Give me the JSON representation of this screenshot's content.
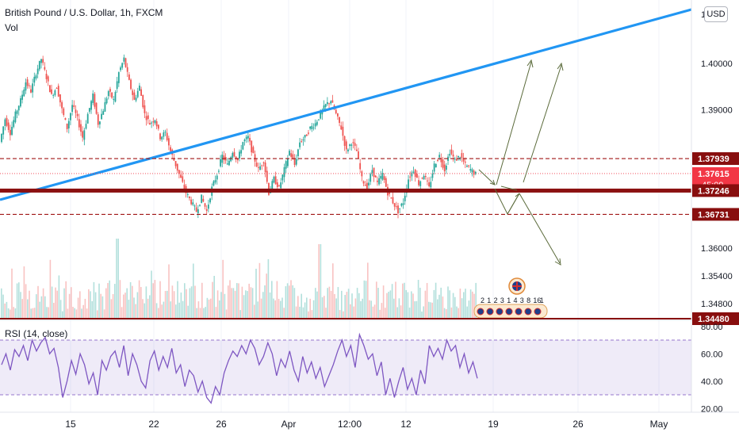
{
  "header": {
    "title": "British Pound / U.S. Dollar, 1h, FXCM",
    "volume_label": "Vol",
    "currency": "USD"
  },
  "rsi": {
    "label": "RSI (14, close)",
    "upper_band": 70,
    "lower_band": 30,
    "axis_ticks": [
      "80.00",
      "60.00",
      "40.00",
      "20.00"
    ],
    "axis_values": [
      80,
      60,
      40,
      20
    ],
    "series": [
      52,
      60,
      48,
      63,
      58,
      66,
      55,
      70,
      62,
      68,
      72,
      60,
      64,
      50,
      28,
      40,
      55,
      45,
      60,
      52,
      38,
      46,
      30,
      55,
      48,
      58,
      62,
      50,
      66,
      44,
      60,
      52,
      40,
      35,
      55,
      62,
      48,
      58,
      50,
      64,
      46,
      52,
      36,
      48,
      44,
      32,
      40,
      28,
      24,
      36,
      30,
      46,
      55,
      62,
      58,
      66,
      60,
      70,
      64,
      52,
      58,
      68,
      60,
      44,
      56,
      50,
      62,
      48,
      40,
      58,
      46,
      54,
      42,
      50,
      36,
      44,
      52,
      62,
      70,
      58,
      66,
      50,
      74,
      66,
      56,
      60,
      44,
      54,
      30,
      42,
      28,
      40,
      50,
      34,
      42,
      30,
      48,
      38,
      66,
      58,
      64,
      56,
      70,
      62,
      66,
      50,
      60,
      46,
      54,
      42
    ]
  },
  "price_axis": {
    "ticks": [
      "1.40000",
      "1.39000",
      "1.36000",
      "1.35400",
      "1.34800"
    ],
    "tick_values": [
      1.4,
      1.39,
      1.36,
      1.354,
      1.348
    ],
    "top_partial": "1.4"
  },
  "price_badges": [
    {
      "label": "1.37939",
      "value": 1.37939,
      "color": "#880e0e"
    },
    {
      "label": "1.37615",
      "value": 1.37615,
      "color": "#f23645",
      "countdown": "45:09"
    },
    {
      "label": "1.37246",
      "value": 1.37246,
      "color": "#880e0e"
    },
    {
      "label": "1.36731",
      "value": 1.36731,
      "color": "#880e0e"
    },
    {
      "label": "1.34480",
      "value": 1.3448,
      "color": "#880e0e"
    }
  ],
  "time_axis": {
    "labels": [
      "15",
      "22",
      "26",
      "Apr",
      "12:00",
      "12",
      "19",
      "26",
      "May"
    ],
    "positions": [
      89,
      194,
      279,
      364,
      441,
      512,
      622,
      729,
      831
    ]
  },
  "chart_data": {
    "type": "line",
    "title": "British Pound / U.S. Dollar, 1h, FXCM",
    "xlabel": "",
    "ylabel": "",
    "ylim": [
      1.3448,
      1.411
    ],
    "x_labels": [
      "15",
      "22",
      "26",
      "Apr",
      "12:00",
      "12",
      "19",
      "26",
      "May"
    ],
    "series": [
      {
        "name": "",
        "values": [
          1.383,
          1.388,
          1.385,
          1.389,
          1.392,
          1.396,
          1.394,
          1.398,
          1.401,
          1.397,
          1.393,
          1.395,
          1.39,
          1.386,
          1.391,
          1.388,
          1.384,
          1.389,
          1.393,
          1.387,
          1.39,
          1.394,
          1.392,
          1.398,
          1.401,
          1.396,
          1.392,
          1.395,
          1.389,
          1.387,
          1.388,
          1.384,
          1.385,
          1.381,
          1.378,
          1.375,
          1.372,
          1.37,
          1.368,
          1.371,
          1.368,
          1.373,
          1.376,
          1.38,
          1.378,
          1.381,
          1.379,
          1.383,
          1.384,
          1.38,
          1.377,
          1.379,
          1.372,
          1.375,
          1.373,
          1.377,
          1.381,
          1.378,
          1.383,
          1.384,
          1.386,
          1.387,
          1.389,
          1.391,
          1.392,
          1.389,
          1.386,
          1.381,
          1.383,
          1.381,
          1.375,
          1.373,
          1.377,
          1.374,
          1.376,
          1.372,
          1.37,
          1.368,
          1.37,
          1.375,
          1.377,
          1.374,
          1.376,
          1.373,
          1.378,
          1.38,
          1.377,
          1.381,
          1.379,
          1.38,
          1.378,
          1.377,
          1.376
        ]
      }
    ],
    "levels": [
      1.37939,
      1.37246,
      1.36731
    ]
  }
}
